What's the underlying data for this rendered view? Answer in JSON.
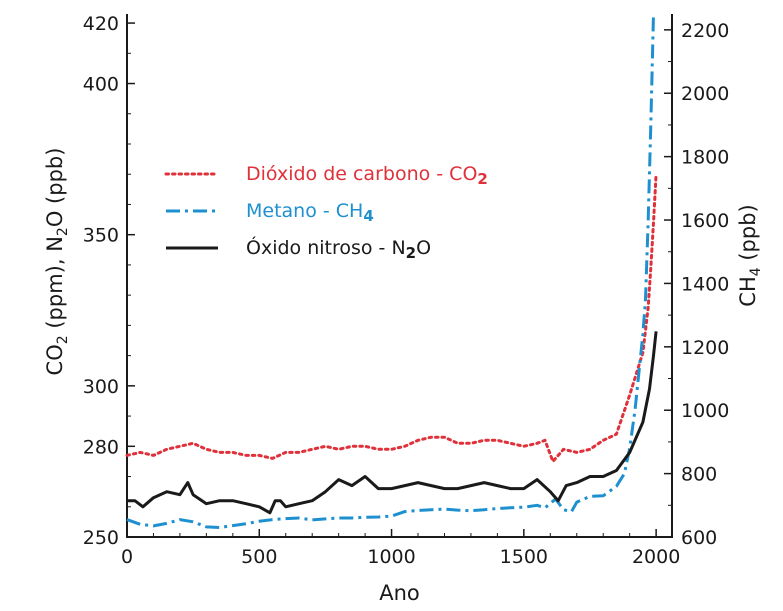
{
  "chart_data": {
    "type": "line",
    "xlabel": "Ano",
    "ylabel_left": {
      "base": "CO",
      "sub1": "2",
      "mid": " (ppm), N",
      "sub2": "2",
      "end": "O (ppb)"
    },
    "ylabel_right": {
      "base": "CH",
      "sub": "4",
      "end": " (ppb)"
    },
    "x_ticks": [
      0,
      500,
      1000,
      1500,
      2000
    ],
    "xlim": [
      0,
      2060
    ],
    "y_left_ticks": [
      250,
      280,
      300,
      350,
      400,
      420
    ],
    "y_left_lim": [
      250,
      423
    ],
    "y_right_ticks": [
      600,
      800,
      1000,
      1200,
      1400,
      1600,
      1800,
      2000,
      2200
    ],
    "y_right_lim": [
      600,
      2250
    ],
    "legend_position": "upper-left",
    "series": [
      {
        "name": "Dióxido de carbono - CO2",
        "legend": {
          "base": "Dióxido de carbono - CO",
          "sub": "2"
        },
        "axis": "left",
        "color": "#e0313a",
        "style": "dotted",
        "x": [
          0,
          50,
          100,
          150,
          200,
          250,
          300,
          350,
          400,
          450,
          500,
          550,
          600,
          650,
          700,
          750,
          800,
          850,
          900,
          950,
          1000,
          1050,
          1100,
          1150,
          1200,
          1250,
          1300,
          1350,
          1400,
          1450,
          1500,
          1550,
          1580,
          1610,
          1650,
          1700,
          1750,
          1800,
          1850,
          1900,
          1950,
          1970,
          1980,
          1990,
          2000
        ],
        "y": [
          277,
          278,
          277,
          279,
          280,
          281,
          279,
          278,
          278,
          277,
          277,
          276,
          278,
          278,
          279,
          280,
          279,
          280,
          280,
          279,
          279,
          280,
          282,
          283,
          283,
          281,
          281,
          282,
          282,
          281,
          280,
          281,
          282,
          275,
          279,
          278,
          279,
          282,
          284,
          297,
          311,
          326,
          339,
          354,
          370
        ]
      },
      {
        "name": "Metano - CH4",
        "legend": {
          "base": "Metano - CH",
          "sub": "4"
        },
        "axis": "right",
        "color": "#1e90d0",
        "style": "dashdot",
        "x": [
          0,
          50,
          100,
          150,
          200,
          250,
          300,
          350,
          400,
          450,
          500,
          550,
          600,
          650,
          700,
          750,
          800,
          850,
          900,
          950,
          1000,
          1050,
          1100,
          1150,
          1200,
          1250,
          1300,
          1350,
          1400,
          1450,
          1500,
          1550,
          1580,
          1620,
          1650,
          1680,
          1700,
          1750,
          1800,
          1850,
          1880,
          1900,
          1920,
          1950,
          1960,
          1970,
          1980,
          1990
        ],
        "y": [
          655,
          640,
          635,
          643,
          655,
          648,
          632,
          630,
          636,
          642,
          650,
          655,
          658,
          660,
          654,
          657,
          660,
          660,
          662,
          663,
          666,
          680,
          684,
          686,
          688,
          685,
          683,
          686,
          690,
          692,
          694,
          700,
          692,
          720,
          686,
          680,
          710,
          728,
          730,
          760,
          800,
          880,
          1000,
          1240,
          1350,
          1600,
          1900,
          2250
        ]
      },
      {
        "name": "Óxido nitroso - N2O",
        "legend": {
          "base": "Óxido nitroso - N",
          "sub": "2",
          "end": "O"
        },
        "axis": "left",
        "color": "#1a1a1a",
        "style": "solid",
        "x": [
          0,
          30,
          60,
          100,
          150,
          200,
          230,
          250,
          300,
          350,
          400,
          450,
          500,
          540,
          560,
          580,
          600,
          650,
          700,
          750,
          800,
          850,
          900,
          950,
          1000,
          1050,
          1100,
          1150,
          1200,
          1250,
          1300,
          1350,
          1400,
          1450,
          1500,
          1550,
          1600,
          1630,
          1660,
          1700,
          1750,
          1800,
          1850,
          1900,
          1950,
          1975,
          1990,
          2000
        ],
        "y": [
          262,
          262,
          260,
          263,
          265,
          264,
          268,
          264,
          261,
          262,
          262,
          261,
          260,
          258,
          262,
          262,
          260,
          261,
          262,
          265,
          269,
          267,
          270,
          266,
          266,
          267,
          268,
          267,
          266,
          266,
          267,
          268,
          267,
          266,
          266,
          269,
          265,
          262,
          267,
          268,
          270,
          270,
          272,
          278,
          288,
          299,
          310,
          318
        ]
      }
    ]
  }
}
